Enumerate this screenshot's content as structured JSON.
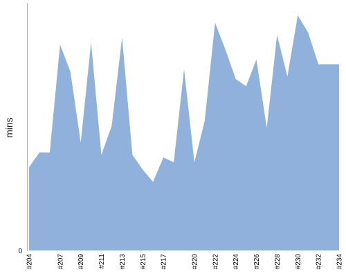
{
  "chart_data": {
    "type": "area",
    "title": "",
    "xlabel": "",
    "ylabel": "mins",
    "ylim": [
      0,
      100
    ],
    "yticks": [
      0
    ],
    "grid": false,
    "legend": "none",
    "color": "#8fb1dc",
    "categories": [
      "#204",
      "#205",
      "#206",
      "#207",
      "#208",
      "#209",
      "#210",
      "#211",
      "#212",
      "#213",
      "#214",
      "#215",
      "#216",
      "#217",
      "#218",
      "#219",
      "#220",
      "#221",
      "#222",
      "#223",
      "#224",
      "#225",
      "#226",
      "#227",
      "#228",
      "#229",
      "#230",
      "#231",
      "#232",
      "#233",
      "#234"
    ],
    "xtick_labels": [
      "#204",
      "#207",
      "#209",
      "#211",
      "#213",
      "#215",
      "#217",
      "#220",
      "#222",
      "#224",
      "#226",
      "#228",
      "#230",
      "#232",
      "#234"
    ],
    "values": [
      34,
      40,
      40,
      84,
      73,
      44,
      85,
      39,
      51,
      87,
      39,
      33,
      28,
      38,
      36,
      74,
      36,
      53,
      93,
      82,
      70,
      67,
      78,
      50,
      88,
      71,
      96,
      89,
      76,
      76,
      76
    ]
  }
}
